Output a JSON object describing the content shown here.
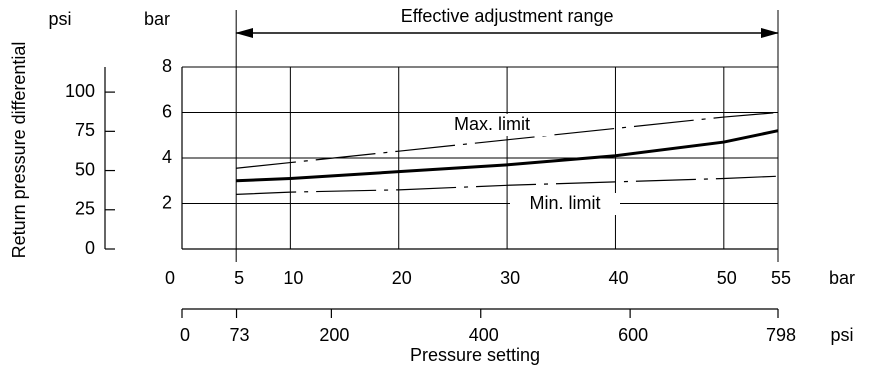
{
  "chart_data": {
    "type": "line",
    "y_axis_title": "Return pressure differential",
    "x_axis_title": "Pressure setting",
    "y_unit": "bar",
    "y2_unit": "psi",
    "x_unit": "bar",
    "x2_unit": "psi",
    "annotation": "Effective adjustment range",
    "x": [
      5,
      10,
      20,
      30,
      40,
      50,
      55
    ],
    "series": [
      {
        "name": "Max. limit",
        "color": "#000000",
        "style": "dashdot",
        "width": 1.2,
        "values": [
          3.55,
          3.8,
          4.3,
          4.8,
          5.3,
          5.8,
          6.0
        ]
      },
      {
        "color": "#000000",
        "style": "solid",
        "width": 3,
        "values": [
          3.0,
          3.1,
          3.4,
          3.7,
          4.1,
          4.7,
          5.2
        ]
      },
      {
        "name": "Min. limit",
        "color": "#000000",
        "style": "dashdot",
        "width": 1.2,
        "values": [
          2.4,
          2.5,
          2.6,
          2.8,
          2.95,
          3.1,
          3.2
        ]
      }
    ],
    "xlim": [
      0,
      55
    ],
    "xticks": [
      0,
      5,
      10,
      20,
      30,
      40,
      50,
      55
    ],
    "x2lim": [
      0,
      798
    ],
    "x2ticks": [
      0,
      73,
      200,
      400,
      600,
      798
    ],
    "ylim": [
      0,
      8
    ],
    "yticks": [
      2,
      4,
      6,
      8
    ],
    "y2lim": [
      0,
      116
    ],
    "y2ticks": [
      0,
      25,
      50,
      75,
      100
    ],
    "grid": true
  }
}
